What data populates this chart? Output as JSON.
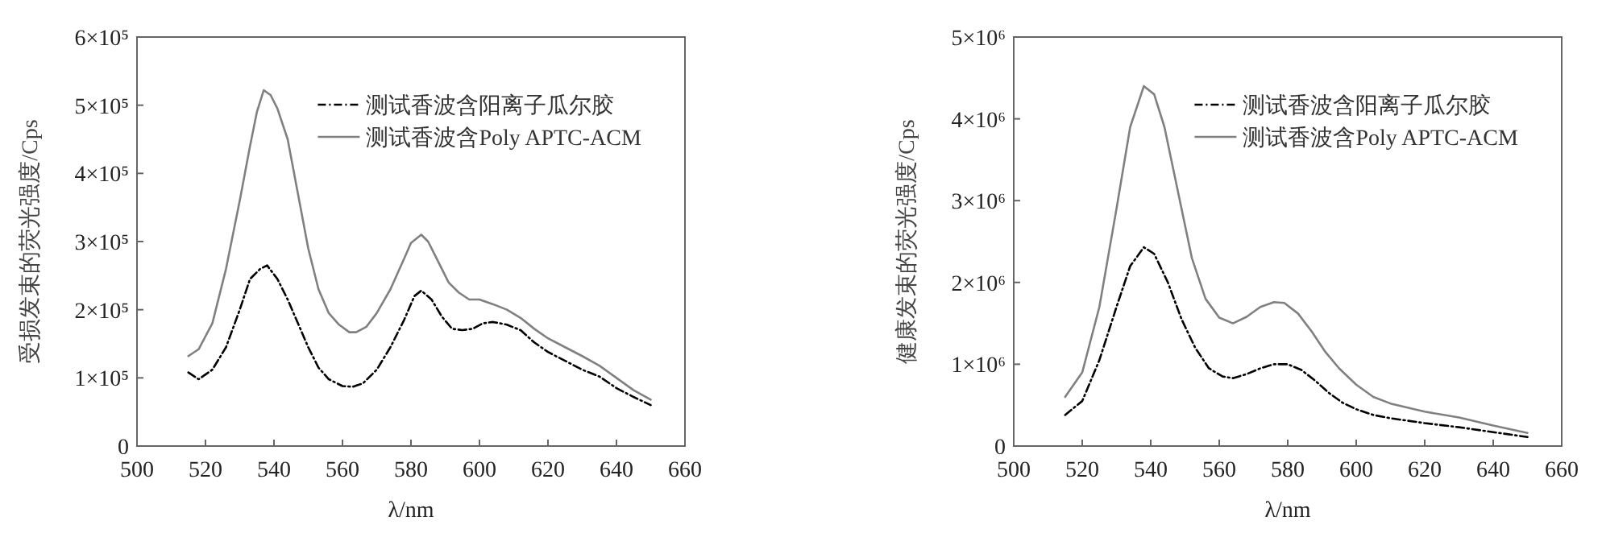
{
  "chart_data": [
    {
      "type": "line",
      "xlabel": "λ/nm",
      "ylabel": "受损发束的荧光强度/Cps",
      "xlim": [
        500,
        660
      ],
      "xticks": [
        500,
        520,
        540,
        560,
        580,
        600,
        620,
        640,
        660
      ],
      "ylim": [
        0,
        600000.0
      ],
      "yticks": [
        0,
        {
          "value": 100000.0,
          "label": "1×10⁵"
        },
        {
          "value": 200000.0,
          "label": "2×10⁵"
        },
        {
          "value": 300000.0,
          "label": "3×10⁵"
        },
        {
          "value": 400000.0,
          "label": "4×10⁵"
        },
        {
          "value": 500000.0,
          "label": "5×10⁵"
        },
        {
          "value": 600000.0,
          "label": "6×10⁵"
        }
      ],
      "legend": "top right",
      "grid": false,
      "marker": "none",
      "series": [
        {
          "name": "测试香波含阳离子瓜尔胶",
          "color": "#000000",
          "line_style": "dashed",
          "x": [
            515,
            518,
            522,
            526,
            530,
            533,
            536,
            538,
            541,
            544,
            547,
            550,
            553,
            556,
            560,
            563,
            566,
            570,
            574,
            578,
            581,
            583,
            586,
            589,
            592,
            595,
            598,
            601,
            604,
            608,
            612,
            616,
            620,
            625,
            630,
            635,
            640,
            645,
            650
          ],
          "values": [
            108000.0,
            98000.0,
            112000.0,
            145000.0,
            200000.0,
            245000.0,
            260000.0,
            265000.0,
            245000.0,
            215000.0,
            180000.0,
            145000.0,
            115000.0,
            98000.0,
            88000.0,
            87000.0,
            92000.0,
            112000.0,
            145000.0,
            185000.0,
            220000.0,
            228000.0,
            215000.0,
            190000.0,
            172000.0,
            170000.0,
            172000.0,
            180000.0,
            182000.0,
            178000.0,
            170000.0,
            152000.0,
            138000.0,
            125000.0,
            112000.0,
            102000.0,
            85000.0,
            72000.0,
            60000.0
          ]
        },
        {
          "name": "测试香波含Poly APTC-ACM",
          "color": "#808080",
          "line_style": "solid",
          "x": [
            515,
            518,
            522,
            526,
            530,
            533,
            535,
            537,
            539,
            541,
            544,
            547,
            550,
            553,
            556,
            559,
            562,
            564,
            567,
            570,
            574,
            578,
            580,
            583,
            585,
            588,
            591,
            594,
            597,
            600,
            604,
            608,
            612,
            616,
            620,
            625,
            630,
            635,
            640,
            645,
            650
          ],
          "values": [
            132000.0,
            142000.0,
            180000.0,
            260000.0,
            360000.0,
            440000.0,
            490000.0,
            522000.0,
            515000.0,
            495000.0,
            450000.0,
            370000.0,
            290000.0,
            230000.0,
            195000.0,
            178000.0,
            167000.0,
            167000.0,
            175000.0,
            195000.0,
            230000.0,
            275000.0,
            298000.0,
            310000.0,
            300000.0,
            270000.0,
            240000.0,
            225000.0,
            215000.0,
            215000.0,
            208000.0,
            200000.0,
            188000.0,
            172000.0,
            158000.0,
            145000.0,
            132000.0,
            118000.0,
            100000.0,
            82000.0,
            68000.0
          ]
        }
      ]
    },
    {
      "type": "line",
      "xlabel": "λ/nm",
      "ylabel": "健康发束的荧光强度/Cps",
      "xlim": [
        500,
        660
      ],
      "xticks": [
        500,
        520,
        540,
        560,
        580,
        600,
        620,
        640,
        660
      ],
      "ylim": [
        0,
        5000000.0
      ],
      "yticks": [
        0,
        {
          "value": 1000000.0,
          "label": "1×10⁶"
        },
        {
          "value": 2000000.0,
          "label": "2×10⁶"
        },
        {
          "value": 3000000.0,
          "label": "3×10⁶"
        },
        {
          "value": 4000000.0,
          "label": "4×10⁶"
        },
        {
          "value": 5000000.0,
          "label": "5×10⁶"
        }
      ],
      "legend": "top right",
      "grid": false,
      "marker": "none",
      "series": [
        {
          "name": "测试香波含阳离子瓜尔胶",
          "color": "#000000",
          "line_style": "dashed",
          "x": [
            515,
            520,
            525,
            530,
            534,
            538,
            541,
            545,
            549,
            553,
            557,
            561,
            564,
            568,
            572,
            576,
            580,
            584,
            588,
            592,
            596,
            600,
            605,
            610,
            620,
            630,
            640,
            650
          ],
          "values": [
            380000.0,
            550000.0,
            1050000.0,
            1700000.0,
            2200000.0,
            2430000.0,
            2350000.0,
            2000000.0,
            1550000.0,
            1200000.0,
            950000.0,
            850000.0,
            830000.0,
            880000.0,
            950000.0,
            1000000.0,
            1000000.0,
            930000.0,
            800000.0,
            650000.0,
            530000.0,
            450000.0,
            380000.0,
            340000.0,
            280000.0,
            230000.0,
            170000.0,
            110000.0
          ]
        },
        {
          "name": "测试香波含Poly APTC-ACM",
          "color": "#808080",
          "line_style": "solid",
          "x": [
            515,
            520,
            525,
            530,
            534,
            538,
            541,
            544,
            548,
            552,
            556,
            560,
            564,
            568,
            572,
            576,
            579,
            583,
            587,
            591,
            595,
            600,
            605,
            610,
            620,
            630,
            640,
            650
          ],
          "values": [
            600000.0,
            900000.0,
            1700000.0,
            2900000.0,
            3900000.0,
            4400000.0,
            4300000.0,
            3900000.0,
            3100000.0,
            2300000.0,
            1800000.0,
            1570000.0,
            1500000.0,
            1580000.0,
            1700000.0,
            1760000.0,
            1750000.0,
            1620000.0,
            1400000.0,
            1150000.0,
            950000.0,
            750000.0,
            600000.0,
            520000.0,
            420000.0,
            350000.0,
            250000.0,
            160000.0
          ]
        }
      ]
    }
  ]
}
